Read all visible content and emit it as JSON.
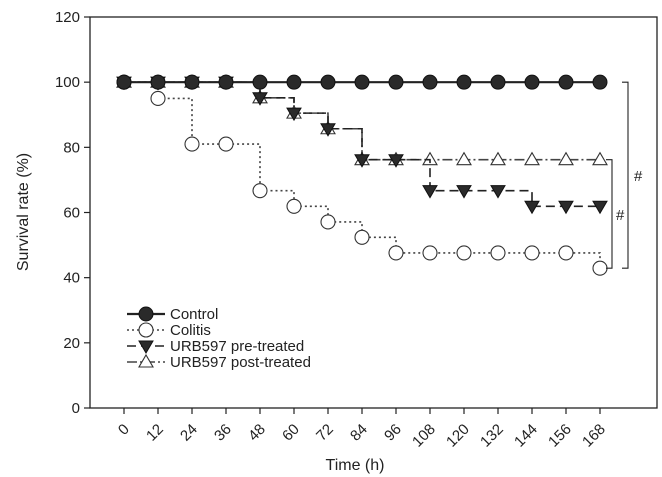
{
  "chart_data": {
    "type": "line",
    "title": "",
    "xlabel": "Time (h)",
    "ylabel": "Survival rate (%)",
    "x": [
      0,
      12,
      24,
      36,
      48,
      60,
      72,
      84,
      96,
      108,
      120,
      132,
      144,
      156,
      168
    ],
    "x_tick_labels": [
      "0",
      "12",
      "24",
      "36",
      "48",
      "60",
      "72",
      "84",
      "96",
      "108",
      "120",
      "132",
      "144",
      "156",
      "168"
    ],
    "ylim": [
      0,
      120
    ],
    "y_ticks": [
      0,
      20,
      40,
      60,
      80,
      100,
      120
    ],
    "step": true,
    "grid": false,
    "legend_position": "bottom-left",
    "series": [
      {
        "name": "Control",
        "marker": "filled-circle",
        "line": "solid",
        "color": "#222222",
        "values": [
          100,
          100,
          100,
          100,
          100,
          100,
          100,
          100,
          100,
          100,
          100,
          100,
          100,
          100,
          100
        ]
      },
      {
        "name": "Colitis",
        "marker": "open-circle",
        "line": "dotted",
        "color": "#444444",
        "values": [
          100,
          95,
          81,
          81,
          66.7,
          61.9,
          57.1,
          52.4,
          47.6,
          47.6,
          47.6,
          47.6,
          47.6,
          47.6,
          42.9
        ]
      },
      {
        "name": "URB597 pre-treated",
        "marker": "filled-triangle-down",
        "line": "dashed",
        "color": "#222222",
        "values": [
          100,
          100,
          100,
          100,
          95.2,
          90.5,
          85.7,
          76.2,
          76.2,
          66.7,
          66.7,
          66.7,
          61.9,
          61.9,
          61.9
        ]
      },
      {
        "name": "URB597 post-treated",
        "marker": "open-triangle-up",
        "line": "dash-dot",
        "color": "#444444",
        "values": [
          100,
          100,
          100,
          100,
          95.2,
          90.5,
          85.7,
          76.2,
          76.2,
          76.2,
          76.2,
          76.2,
          76.2,
          76.2,
          76.2
        ]
      }
    ],
    "annotations": [
      {
        "text": "#",
        "between": "Colitis and URB597 post-treated"
      },
      {
        "text": "#",
        "between": "Control and Colitis"
      }
    ]
  }
}
